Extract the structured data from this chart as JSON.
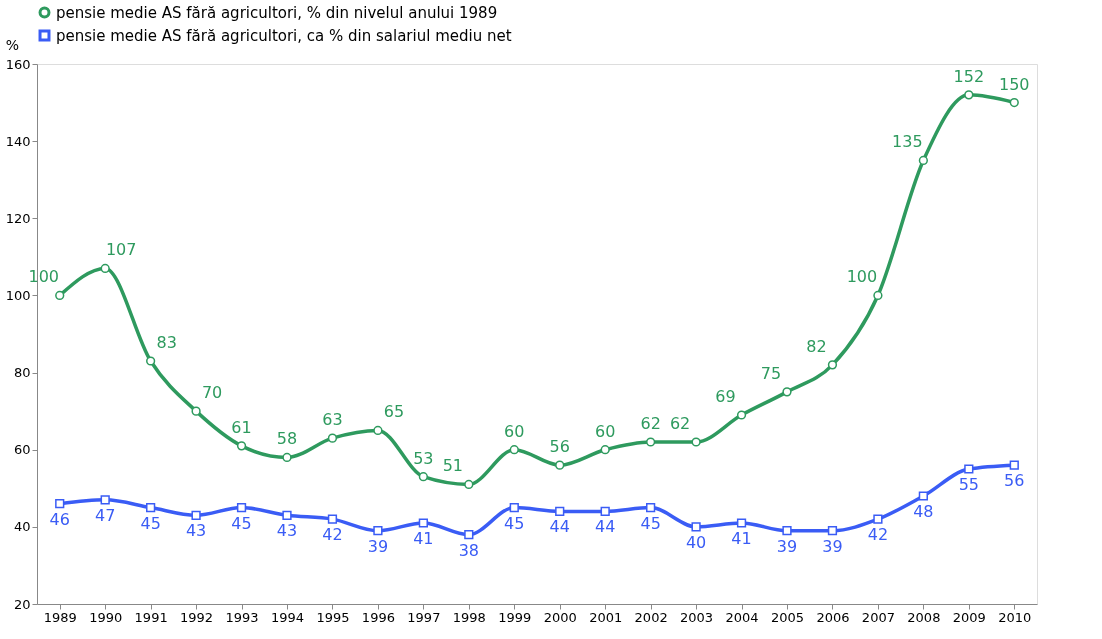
{
  "chart_data": {
    "type": "line",
    "ylabel": "%",
    "categories": [
      "1989",
      "1990",
      "1991",
      "1992",
      "1993",
      "1994",
      "1995",
      "1996",
      "1997",
      "1998",
      "1999",
      "2000",
      "2001",
      "2002",
      "2003",
      "2004",
      "2005",
      "2006",
      "2007",
      "2008",
      "2009",
      "2010"
    ],
    "series": [
      {
        "name": "pensie medie AS fără agricultori, % din nivelul anului 1989",
        "color": "#2e9a5e",
        "marker": "circle",
        "values": [
          100,
          107,
          83,
          70,
          61,
          58,
          63,
          65,
          53,
          51,
          60,
          56,
          60,
          62,
          62,
          69,
          75,
          82,
          100,
          135,
          152,
          150
        ]
      },
      {
        "name": "pensie medie AS fără agricultori, ca % din salariul mediu net",
        "color": "#3a5cf5",
        "marker": "square",
        "values": [
          46,
          47,
          45,
          43,
          45,
          43,
          42,
          39,
          41,
          38,
          45,
          44,
          44,
          45,
          40,
          41,
          39,
          39,
          42,
          48,
          55,
          56
        ]
      }
    ],
    "ylim": [
      20,
      160
    ],
    "yticks": [
      20,
      40,
      60,
      80,
      100,
      120,
      140,
      160
    ],
    "grid": false,
    "legend": "top",
    "data_labels": true,
    "line_style": "solid"
  }
}
